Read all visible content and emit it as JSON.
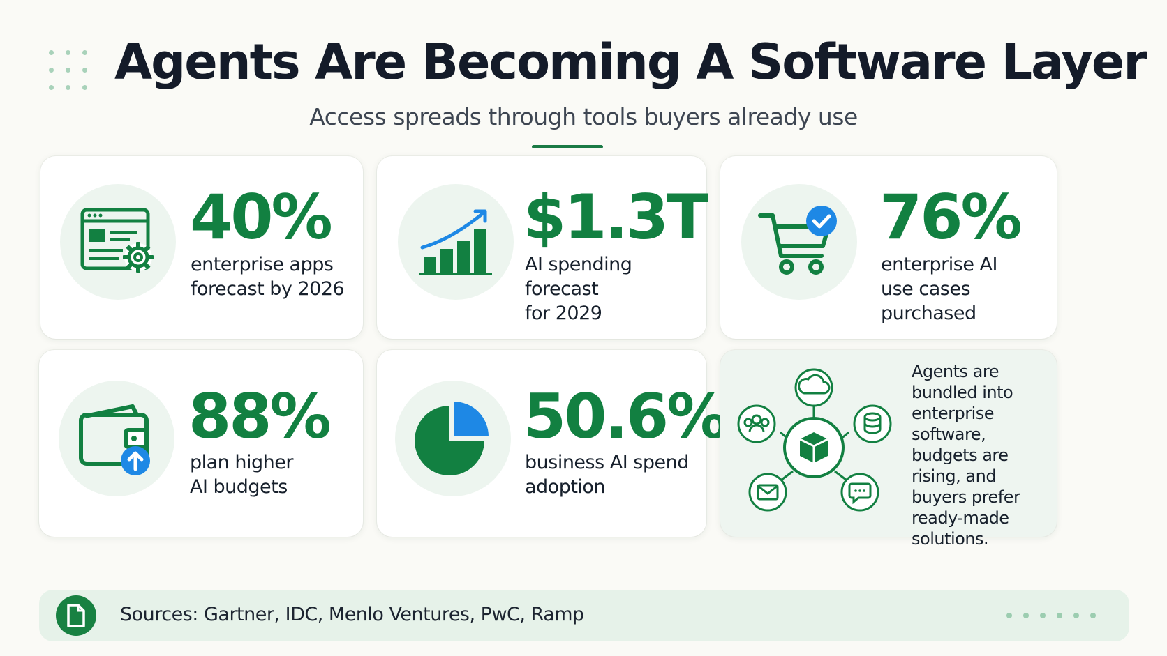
{
  "header": {
    "title": "Agents Are Becoming A Software Layer",
    "subtitle": "Access spreads through tools buyers already use"
  },
  "stats": [
    {
      "value": "40%",
      "lines": [
        "enterprise apps",
        "forecast by 2026"
      ],
      "icon": "browser-gear-icon"
    },
    {
      "value": "$1.3T",
      "lines": [
        "AI spending forecast",
        "for 2029"
      ],
      "icon": "growth-chart-icon"
    },
    {
      "value": "76%",
      "lines": [
        "enterprise AI",
        "use cases",
        "purchased"
      ],
      "icon": "shopping-cart-check-icon"
    },
    {
      "value": "88%",
      "lines": [
        "plan higher",
        "AI budgets"
      ],
      "icon": "wallet-upload-icon"
    },
    {
      "value": "50.6%",
      "lines": [
        "business AI spend",
        "adoption"
      ],
      "icon": "pie-chart-icon"
    }
  ],
  "summary": {
    "lines": [
      "Agents are",
      "bundled into",
      "enterprise",
      "software,",
      "budgets are",
      "rising, and",
      "buyers prefer",
      "ready-made",
      "solutions."
    ],
    "icon": "network-hub-icon"
  },
  "footer": {
    "text": "Sources: Gartner, IDC, Menlo Ventures, PwC, Ramp",
    "icon": "document-icon"
  },
  "colors": {
    "primary_green": "#128041",
    "accent_blue": "#1e88e5",
    "background": "#fafaf6",
    "icon_circle": "#edf5ef"
  }
}
